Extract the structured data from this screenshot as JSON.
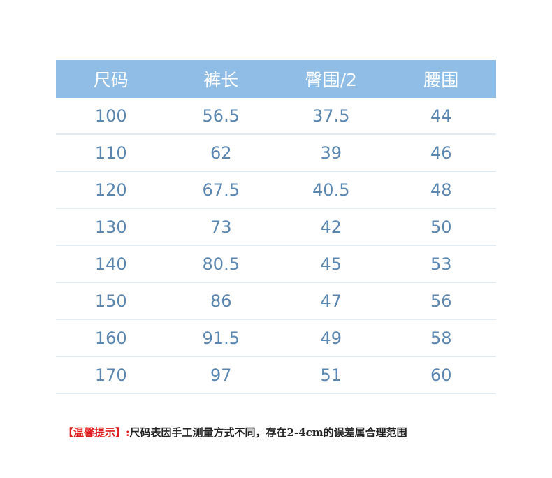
{
  "headers": [
    "尺码",
    "裤长",
    "臀围/2",
    "腰围"
  ],
  "rows": [
    [
      "100",
      "56.5",
      "37.5",
      "44"
    ],
    [
      "110",
      "62",
      "39",
      "46"
    ],
    [
      "120",
      "67.5",
      "40.5",
      "48"
    ],
    [
      "130",
      "73",
      "42",
      "50"
    ],
    [
      "140",
      "80.5",
      "45",
      "53"
    ],
    [
      "150",
      "86",
      "47",
      "56"
    ],
    [
      "160",
      "91.5",
      "49",
      "58"
    ],
    [
      "170",
      "97",
      "51",
      "60"
    ]
  ],
  "note": {
    "label": "【温馨提示】:",
    "text": "尺码表因手工测量方式不同，存在2-4cm的误差属合理范围"
  },
  "colors": {
    "header_bg": "#8fbde6",
    "cell_text": "#5a86b0",
    "note_label": "#e0191d"
  }
}
